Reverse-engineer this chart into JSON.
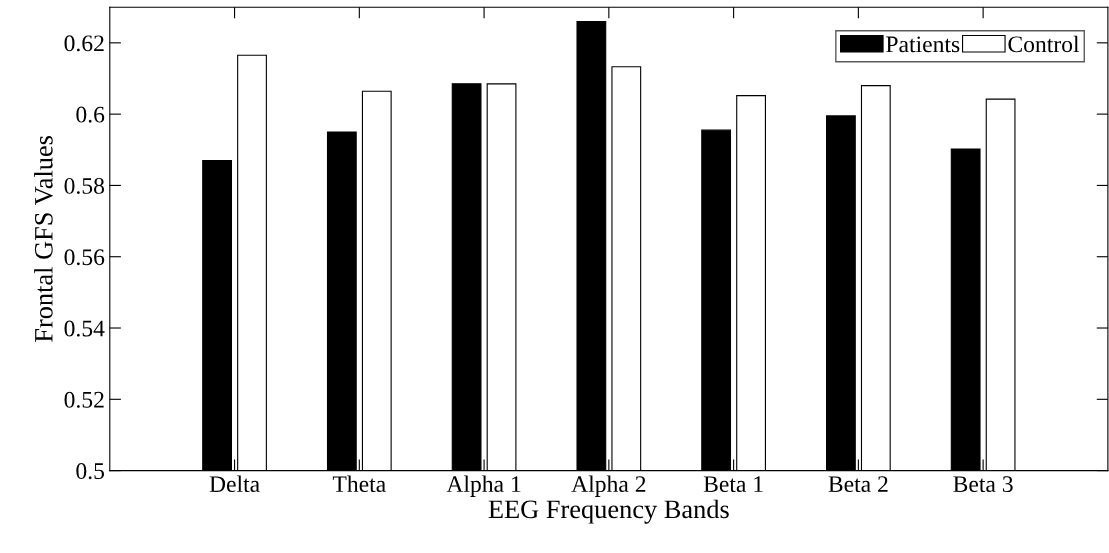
{
  "chart_data": {
    "type": "bar",
    "xlabel": "EEG Frequency Bands",
    "ylabel": "Frontal GFS Values",
    "categories": [
      "Delta",
      "Theta",
      "Alpha 1",
      "Alpha 2",
      "Beta 1",
      "Beta 2",
      "Beta 3"
    ],
    "series": [
      {
        "name": "Patients",
        "color": "#000000",
        "values": [
          0.587,
          0.595,
          0.6085,
          0.626,
          0.5955,
          0.5995,
          0.5902
        ]
      },
      {
        "name": "Control",
        "color": "#ffffff",
        "values": [
          0.6165,
          0.6064,
          0.6085,
          0.6133,
          0.6052,
          0.608,
          0.6042
        ]
      }
    ],
    "ylim": [
      0.5,
      0.63
    ],
    "yticks": [
      0.5,
      0.52,
      0.54,
      0.56,
      0.58,
      0.6,
      0.62
    ],
    "grid": false,
    "legend": "top right"
  }
}
